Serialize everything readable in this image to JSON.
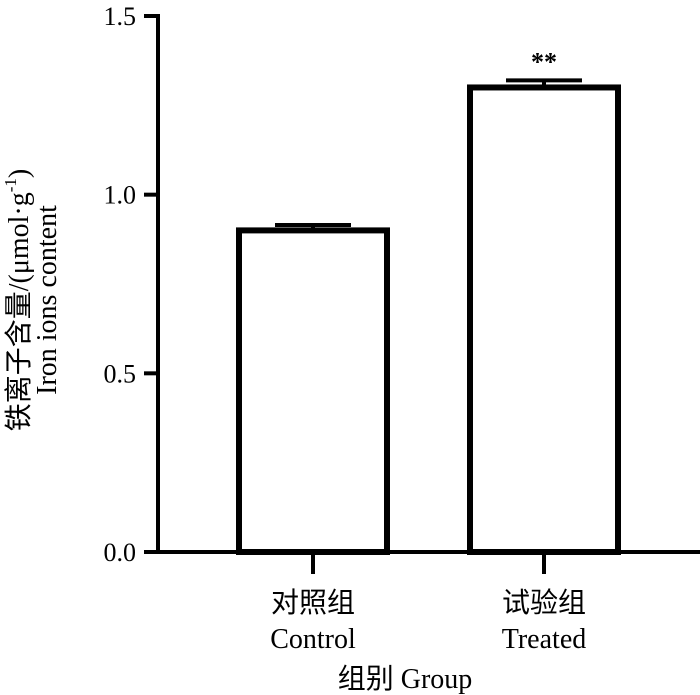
{
  "chart_data": {
    "type": "bar",
    "title": "",
    "categories": [
      {
        "zh": "对照组",
        "en": "Control"
      },
      {
        "zh": "试验组",
        "en": "Treated"
      }
    ],
    "values": [
      0.9,
      1.3
    ],
    "errors": [
      0.015,
      0.02
    ],
    "significance": [
      "",
      "**"
    ],
    "ylim": [
      0,
      1.5
    ],
    "yticks": [
      "0.0",
      "0.5",
      "1.0",
      "1.5"
    ],
    "ylabel_zh": "铁离子含量/(μmol·g",
    "ylabel_sup": "-1",
    "ylabel_close": ")",
    "ylabel_en": "Iron ions content",
    "xlabel": "组别  Group",
    "colors": {
      "bar_fill": "#ffffff",
      "stroke": "#000000"
    }
  }
}
